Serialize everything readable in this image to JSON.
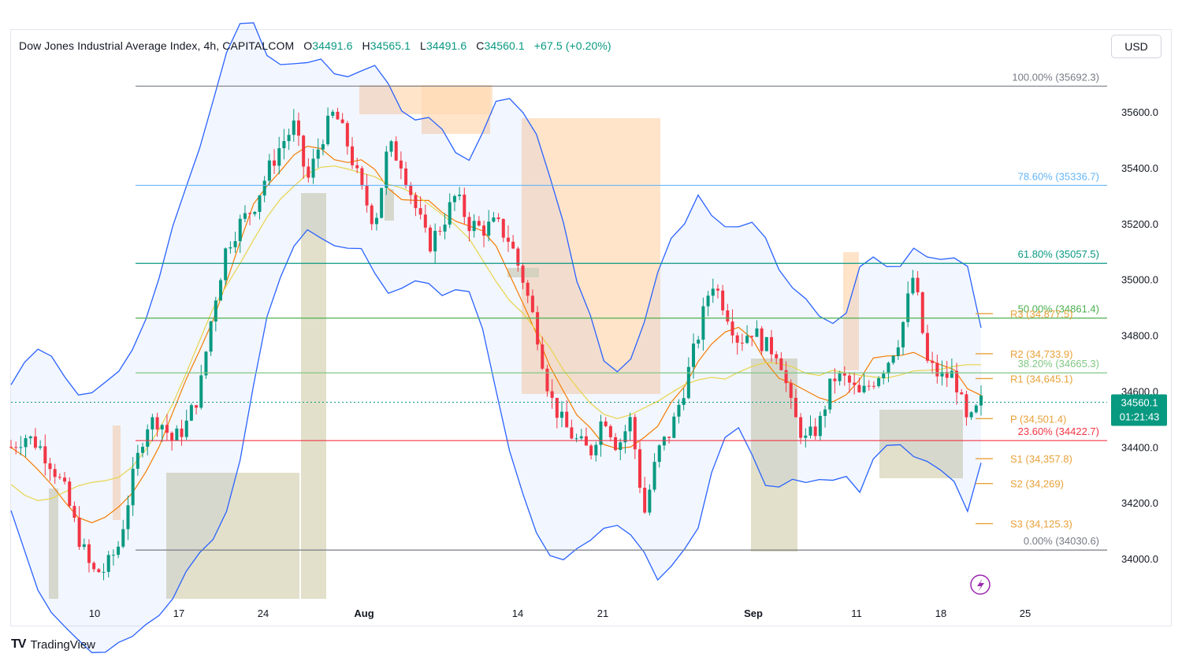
{
  "header": {
    "title": "Dow Jones Industrial Average Index, 4h, CAPITALCOM",
    "open_label": "O",
    "open": "34491.6",
    "high_label": "H",
    "high": "34565.1",
    "low_label": "L",
    "low": "34491.6",
    "close_label": "C",
    "close": "34560.1",
    "change": "+67.5 (+0.20%)"
  },
  "currency": "USD",
  "brand": "TradingView",
  "price_badge": {
    "price": "34560.1",
    "countdown": "01:21:43"
  },
  "colors": {
    "up": "#089981",
    "down": "#f23645",
    "bollinger": "#2962ff",
    "ema_fast": "#f57c00",
    "ema_slow": "#e8d44a",
    "supply": "#ffd9b3",
    "demand": "#d8d5b8",
    "pivot": "#e8a13a"
  },
  "chart_data": {
    "type": "candlestick",
    "symbol": "Dow Jones Industrial Average Index",
    "timeframe": "4h",
    "y_ticks": [
      34000.0,
      34200.0,
      34400.0,
      34600.0,
      34800.0,
      35000.0,
      35200.0,
      35400.0,
      35600.0
    ],
    "y_tick_labels": [
      "34000.0",
      "34200.0",
      "34400.0",
      "34600.0",
      "34800.0",
      "35000.0",
      "35200.0",
      "35400.0",
      "35600.0"
    ],
    "x_tick_labels": [
      "10",
      "17",
      "24",
      "Aug",
      "14",
      "21",
      "Sep",
      "11",
      "18",
      "25"
    ],
    "fibonacci": [
      {
        "label": "100.00% (35692.3)",
        "price": 35692.3,
        "color": "#787b86"
      },
      {
        "label": "78.60% (35336.7)",
        "price": 35336.7,
        "color": "#64b5f6"
      },
      {
        "label": "61.80% (35057.5)",
        "price": 35057.5,
        "color": "#089981"
      },
      {
        "label": "50.00% (34861.4)",
        "price": 34861.4,
        "color": "#4caf50"
      },
      {
        "label": "38.20% (34665.3)",
        "price": 34665.3,
        "color": "#81c784"
      },
      {
        "label": "23.60% (34422.7)",
        "price": 34422.7,
        "color": "#f23645"
      },
      {
        "label": "0.00% (34030.6)",
        "price": 34030.6,
        "color": "#787b86"
      }
    ],
    "pivots": [
      {
        "label": "R3 (34,877.5)",
        "price": 34877.5
      },
      {
        "label": "R2 (34,733.9)",
        "price": 34733.9
      },
      {
        "label": "R1 (34,645.1)",
        "price": 34645.1
      },
      {
        "label": "P (34,501.4)",
        "price": 34501.4
      },
      {
        "label": "S1 (34,357.8)",
        "price": 34357.8
      },
      {
        "label": "S2 (34,269)",
        "price": 34269.0
      },
      {
        "label": "S3 (34,125.3)",
        "price": 34125.3
      }
    ],
    "last_price": 34560.1,
    "price_path": [
      [
        0,
        34400
      ],
      [
        0.015,
        34440
      ],
      [
        0.03,
        34410
      ],
      [
        0.045,
        34340
      ],
      [
        0.06,
        34240
      ],
      [
        0.075,
        34080
      ],
      [
        0.09,
        33950
      ],
      [
        0.105,
        33960
      ],
      [
        0.12,
        34050
      ],
      [
        0.135,
        34280
      ],
      [
        0.15,
        34480
      ],
      [
        0.165,
        34500
      ],
      [
        0.18,
        34420
      ],
      [
        0.195,
        34480
      ],
      [
        0.21,
        34600
      ],
      [
        0.225,
        34900
      ],
      [
        0.24,
        35120
      ],
      [
        0.255,
        35200
      ],
      [
        0.27,
        35260
      ],
      [
        0.285,
        35380
      ],
      [
        0.3,
        35480
      ],
      [
        0.315,
        35550
      ],
      [
        0.33,
        35350
      ],
      [
        0.345,
        35500
      ],
      [
        0.36,
        35600
      ],
      [
        0.375,
        35480
      ],
      [
        0.39,
        35320
      ],
      [
        0.405,
        35200
      ],
      [
        0.42,
        35480
      ],
      [
        0.435,
        35420
      ],
      [
        0.45,
        35260
      ],
      [
        0.465,
        35120
      ],
      [
        0.48,
        35200
      ],
      [
        0.495,
        35300
      ],
      [
        0.51,
        35200
      ],
      [
        0.525,
        35180
      ],
      [
        0.54,
        35200
      ],
      [
        0.555,
        35140
      ],
      [
        0.57,
        35000
      ],
      [
        0.585,
        34820
      ],
      [
        0.6,
        34580
      ],
      [
        0.615,
        34480
      ],
      [
        0.63,
        34420
      ],
      [
        0.645,
        34380
      ],
      [
        0.66,
        34520
      ],
      [
        0.675,
        34400
      ],
      [
        0.69,
        34500
      ],
      [
        0.705,
        34160
      ],
      [
        0.72,
        34380
      ],
      [
        0.735,
        34460
      ],
      [
        0.75,
        34620
      ],
      [
        0.765,
        34800
      ],
      [
        0.78,
        35000
      ],
      [
        0.795,
        34900
      ],
      [
        0.81,
        34780
      ],
      [
        0.825,
        34820
      ],
      [
        0.84,
        34760
      ],
      [
        0.855,
        34740
      ],
      [
        0.87,
        34520
      ],
      [
        0.885,
        34420
      ],
      [
        0.9,
        34480
      ],
      [
        0.915,
        34650
      ],
      [
        0.93,
        34640
      ],
      [
        0.945,
        34580
      ],
      [
        0.96,
        34640
      ],
      [
        0.975,
        34700
      ],
      [
        0.99,
        34800
      ],
      [
        1.005,
        35020
      ],
      [
        1.02,
        34700
      ],
      [
        1.035,
        34650
      ],
      [
        1.05,
        34660
      ],
      [
        1.065,
        34470
      ],
      [
        1.08,
        34560
      ]
    ]
  }
}
